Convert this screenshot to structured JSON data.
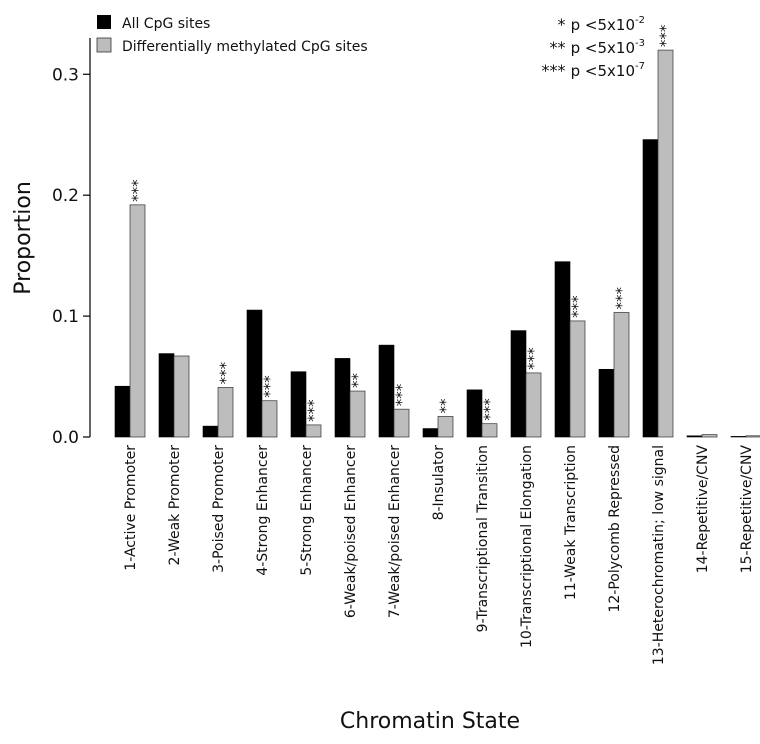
{
  "chart_data": {
    "type": "bar",
    "xlabel": "Chromatin State",
    "ylabel": "Proportion",
    "ylim": [
      0,
      0.33
    ],
    "yticks": [
      "0.0",
      "0.1",
      "0.2",
      "0.3"
    ],
    "ytick_values": [
      0.0,
      0.1,
      0.2,
      0.3
    ],
    "grid": false,
    "legend_position": "top-left",
    "categories": [
      "1-Active Promoter",
      "2-Weak Promoter",
      "3-Poised Promoter",
      "4-Strong Enhancer",
      "5-Strong Enhancer",
      "6-Weak/poised Enhancer",
      "7-Weak/poised Enhancer",
      "8-Insulator",
      "9-Transcriptional Transition",
      "10-Transcriptional Elongation",
      "11-Weak Transcription",
      "12-Polycomb Repressed",
      "13-Heterochromatin; low signal",
      "14-Repetitive/CNV",
      "15-Repetitive/CNV"
    ],
    "series": [
      {
        "name": "All CpG sites",
        "color": "#000000",
        "values": [
          0.042,
          0.069,
          0.009,
          0.105,
          0.054,
          0.065,
          0.076,
          0.007,
          0.039,
          0.088,
          0.145,
          0.056,
          0.246,
          0.001,
          0.0005
        ]
      },
      {
        "name": "Differentially methylated CpG sites",
        "color": "#bdbdbd",
        "values": [
          0.192,
          0.067,
          0.041,
          0.03,
          0.01,
          0.038,
          0.023,
          0.017,
          0.011,
          0.053,
          0.096,
          0.103,
          0.32,
          0.002,
          0.001
        ],
        "significance": [
          "***",
          "",
          "***",
          "***",
          "***",
          "**",
          "***",
          "**",
          "***",
          "***",
          "***",
          "***",
          "***",
          "",
          ""
        ]
      }
    ],
    "significance_legend": [
      {
        "stars": "*",
        "text": "p <5x10",
        "exp": "-2"
      },
      {
        "stars": "**",
        "text": "p <5x10",
        "exp": "-3"
      },
      {
        "stars": "***",
        "text": "p <5x10",
        "exp": "-7"
      }
    ]
  }
}
